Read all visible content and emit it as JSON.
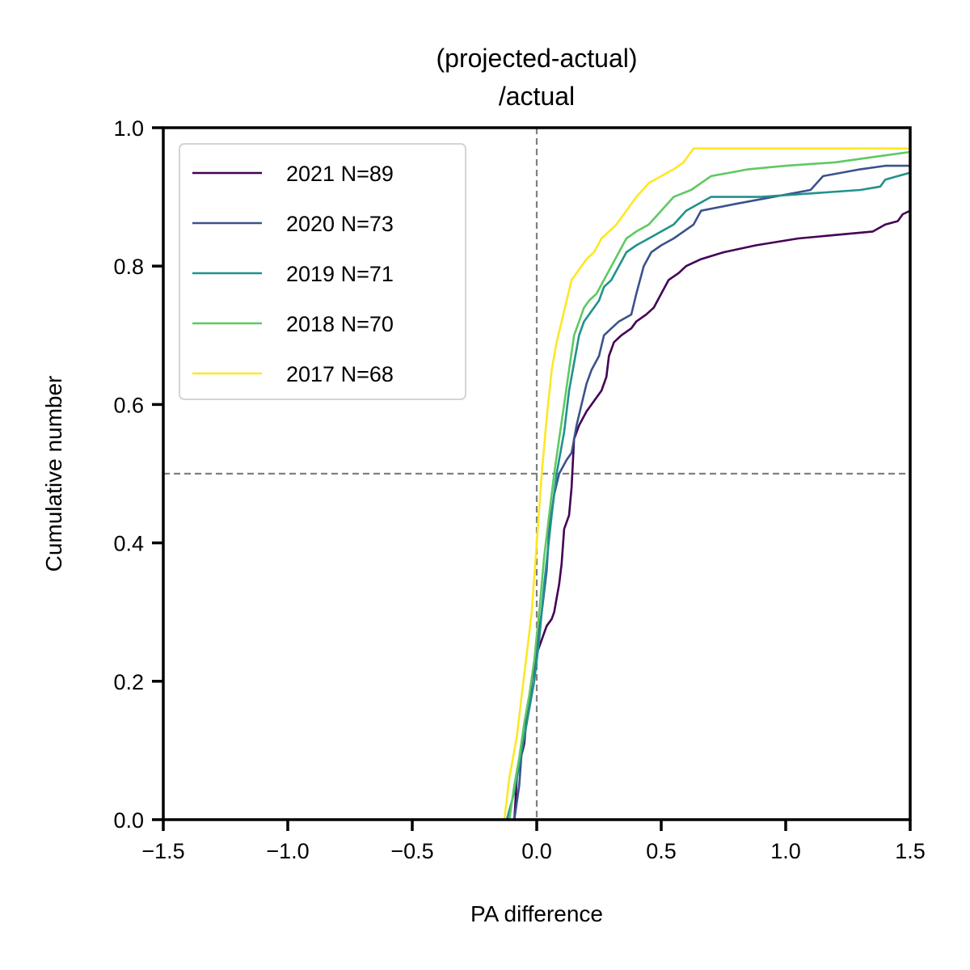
{
  "chart_data": {
    "type": "line",
    "title_lines": [
      "(projected-actual)",
      "/actual"
    ],
    "xlabel": "PA difference",
    "ylabel": "Cumulative number",
    "xlim": [
      -1.5,
      1.5
    ],
    "ylim": [
      0.0,
      1.0
    ],
    "xticks": [
      -1.5,
      -1.0,
      -0.5,
      0.0,
      0.5,
      1.0,
      1.5
    ],
    "xtick_labels": [
      "−1.5",
      "−1.0",
      "−0.5",
      "0.0",
      "0.5",
      "1.0",
      "1.5"
    ],
    "yticks": [
      0.0,
      0.2,
      0.4,
      0.6,
      0.8,
      1.0
    ],
    "ytick_labels": [
      "0.0",
      "0.2",
      "0.4",
      "0.6",
      "0.8",
      "1.0"
    ],
    "grid": false,
    "legend_position": "top-left",
    "reference_lines": {
      "x": 0.0,
      "y": 0.5,
      "style": "dashed",
      "color": "#808080"
    },
    "series": [
      {
        "name": "2021 N=89",
        "color": "#440154",
        "x": [
          -0.09,
          -0.08,
          -0.07,
          -0.05,
          -0.04,
          -0.02,
          0.0,
          0.02,
          0.04,
          0.06,
          0.07,
          0.08,
          0.09,
          0.1,
          0.11,
          0.13,
          0.14,
          0.15,
          0.17,
          0.2,
          0.26,
          0.28,
          0.29,
          0.31,
          0.34,
          0.38,
          0.4,
          0.44,
          0.47,
          0.5,
          0.53,
          0.57,
          0.6,
          0.66,
          0.75,
          0.88,
          1.05,
          1.2,
          1.35,
          1.4,
          1.45,
          1.47,
          1.5
        ],
        "y": [
          0.0,
          0.06,
          0.08,
          0.11,
          0.15,
          0.2,
          0.24,
          0.26,
          0.28,
          0.29,
          0.3,
          0.32,
          0.34,
          0.37,
          0.42,
          0.44,
          0.48,
          0.55,
          0.57,
          0.59,
          0.62,
          0.64,
          0.67,
          0.69,
          0.7,
          0.71,
          0.72,
          0.73,
          0.74,
          0.76,
          0.78,
          0.79,
          0.8,
          0.81,
          0.82,
          0.83,
          0.84,
          0.845,
          0.85,
          0.86,
          0.865,
          0.875,
          0.88
        ]
      },
      {
        "name": "2020 N=73",
        "color": "#3b528b",
        "x": [
          -0.09,
          -0.07,
          -0.06,
          -0.04,
          -0.02,
          0.0,
          0.02,
          0.04,
          0.05,
          0.07,
          0.09,
          0.12,
          0.14,
          0.16,
          0.18,
          0.2,
          0.22,
          0.25,
          0.27,
          0.3,
          0.33,
          0.38,
          0.4,
          0.43,
          0.46,
          0.5,
          0.55,
          0.59,
          0.63,
          0.66,
          0.8,
          1.1,
          1.15,
          1.3,
          1.4,
          1.5
        ],
        "y": [
          0.0,
          0.05,
          0.1,
          0.14,
          0.2,
          0.25,
          0.3,
          0.36,
          0.42,
          0.47,
          0.5,
          0.52,
          0.53,
          0.57,
          0.6,
          0.63,
          0.65,
          0.67,
          0.7,
          0.71,
          0.72,
          0.73,
          0.76,
          0.8,
          0.82,
          0.83,
          0.84,
          0.85,
          0.86,
          0.88,
          0.89,
          0.91,
          0.93,
          0.94,
          0.945,
          0.945
        ]
      },
      {
        "name": "2019 N=71",
        "color": "#21918c",
        "x": [
          -0.12,
          -0.09,
          -0.07,
          -0.05,
          -0.03,
          -0.01,
          0.01,
          0.03,
          0.06,
          0.08,
          0.11,
          0.13,
          0.15,
          0.17,
          0.19,
          0.21,
          0.23,
          0.25,
          0.27,
          0.3,
          0.33,
          0.36,
          0.4,
          0.45,
          0.5,
          0.55,
          0.6,
          0.7,
          0.9,
          1.1,
          1.3,
          1.38,
          1.4,
          1.45,
          1.5
        ],
        "y": [
          0.0,
          0.04,
          0.08,
          0.12,
          0.16,
          0.2,
          0.26,
          0.34,
          0.44,
          0.5,
          0.56,
          0.62,
          0.66,
          0.7,
          0.72,
          0.73,
          0.74,
          0.75,
          0.77,
          0.78,
          0.8,
          0.82,
          0.83,
          0.84,
          0.85,
          0.86,
          0.88,
          0.9,
          0.9,
          0.905,
          0.91,
          0.915,
          0.925,
          0.93,
          0.935
        ]
      },
      {
        "name": "2018 N=70",
        "color": "#5ec962",
        "x": [
          -0.11,
          -0.09,
          -0.07,
          -0.05,
          -0.03,
          -0.01,
          0.01,
          0.03,
          0.05,
          0.07,
          0.09,
          0.11,
          0.13,
          0.15,
          0.17,
          0.19,
          0.21,
          0.24,
          0.27,
          0.3,
          0.33,
          0.36,
          0.4,
          0.45,
          0.5,
          0.55,
          0.62,
          0.7,
          0.85,
          1.0,
          1.2,
          1.4,
          1.5
        ],
        "y": [
          0.0,
          0.05,
          0.09,
          0.14,
          0.18,
          0.23,
          0.3,
          0.38,
          0.44,
          0.5,
          0.55,
          0.6,
          0.65,
          0.7,
          0.72,
          0.74,
          0.75,
          0.76,
          0.78,
          0.8,
          0.82,
          0.84,
          0.85,
          0.86,
          0.88,
          0.9,
          0.91,
          0.93,
          0.94,
          0.945,
          0.95,
          0.96,
          0.965
        ]
      },
      {
        "name": "2017 N=68",
        "color": "#fde725",
        "x": [
          -0.13,
          -0.11,
          -0.08,
          -0.06,
          -0.04,
          -0.02,
          0.0,
          0.02,
          0.04,
          0.06,
          0.08,
          0.1,
          0.12,
          0.14,
          0.16,
          0.18,
          0.2,
          0.23,
          0.26,
          0.29,
          0.32,
          0.36,
          0.4,
          0.45,
          0.5,
          0.55,
          0.59,
          0.63,
          0.7,
          1.0,
          1.3,
          1.5
        ],
        "y": [
          0.0,
          0.06,
          0.12,
          0.18,
          0.24,
          0.3,
          0.4,
          0.5,
          0.58,
          0.65,
          0.69,
          0.72,
          0.75,
          0.78,
          0.79,
          0.8,
          0.81,
          0.82,
          0.84,
          0.85,
          0.86,
          0.88,
          0.9,
          0.92,
          0.93,
          0.94,
          0.95,
          0.97,
          0.97,
          0.97,
          0.97,
          0.97
        ]
      }
    ]
  }
}
